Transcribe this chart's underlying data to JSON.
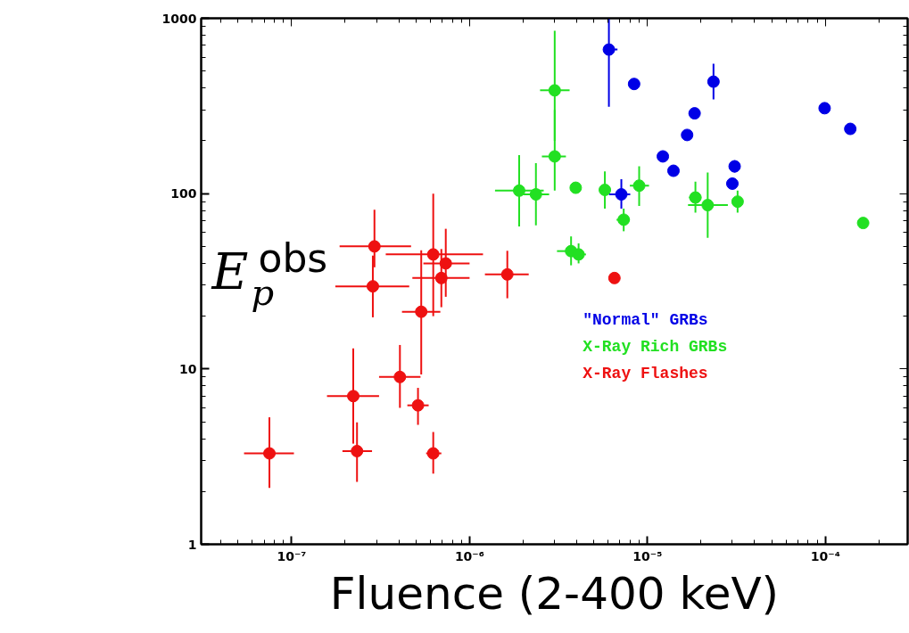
{
  "chart_data": {
    "type": "scatter",
    "xlabel": "Fluence (2-400 keV)",
    "ylabel": "E$_{p}$$^{obs}$",
    "log": "xy",
    "marker": "circle",
    "grid": false,
    "legend": "right",
    "xlim": [
      3.1e-08,
      0.00029
    ],
    "ylim": [
      1,
      1000
    ],
    "xticks": [
      {
        "value": 1e-07,
        "label": "10⁻⁷"
      },
      {
        "value": 1e-06,
        "label": "10⁻⁶"
      },
      {
        "value": 1e-05,
        "label": "10⁻⁵"
      },
      {
        "value": 0.0001,
        "label": "10⁻⁴"
      }
    ],
    "yticks": [
      1,
      10,
      100,
      1000
    ],
    "series": [
      {
        "name": "\"Normal\" GRBs",
        "color": "#0000e6",
        "x": [
          6.07e-06,
          8.41e-06,
          2.35e-05,
          1.84e-05,
          1.67e-05,
          1.22e-05,
          1.4e-05,
          3.09e-05,
          3e-05,
          7.13e-06,
          9.9e-05,
          0.000138
        ],
        "values": [
          663,
          422,
          435,
          287,
          216,
          163,
          135,
          143,
          114,
          99,
          307,
          234
        ],
        "errors": [
          [
            313,
            1000
          ],
          null,
          [
            345,
            550
          ],
          null,
          null,
          null,
          null,
          [
            132,
            155
          ],
          null,
          [
            82,
            121
          ],
          null,
          null
        ],
        "xerrors": [
          [
            5.7e-06,
            6.78e-06
          ],
          null,
          null,
          null,
          null,
          null,
          null,
          null,
          null,
          [
            6.08e-06,
            8e-06
          ],
          null,
          null
        ]
      },
      {
        "name": "X-Ray Rich GRBs",
        "color": "#22e022",
        "x": [
          3.01e-06,
          3.01e-06,
          1.9e-06,
          2.36e-06,
          3.95e-06,
          5.76e-06,
          8.98e-06,
          7.35e-06,
          3.72e-06,
          4.1e-06,
          1.86e-05,
          2.18e-05,
          3.21e-05,
          0.000163
        ],
        "values": [
          388,
          163,
          104,
          99,
          108,
          105,
          111,
          71,
          47,
          45,
          95,
          86,
          90,
          68
        ],
        "errors": [
          [
            200,
            850
          ],
          [
            104,
            300
          ],
          [
            65,
            166
          ],
          [
            66,
            149
          ],
          null,
          [
            82,
            134
          ],
          [
            85,
            143
          ],
          [
            61,
            82
          ],
          [
            39,
            57
          ],
          [
            40,
            52
          ],
          [
            78,
            117
          ],
          [
            56,
            132
          ],
          [
            78,
            104
          ],
          null
        ],
        "xerrors": [
          [
            2.49e-06,
            3.65e-06
          ],
          [
            2.55e-06,
            3.48e-06
          ],
          [
            1.39e-06,
            2.61e-06
          ],
          [
            2e-06,
            2.8e-06
          ],
          null,
          [
            5.37e-06,
            6.2e-06
          ],
          [
            7.96e-06,
            1.02e-05
          ],
          [
            6.7e-06,
            7.96e-06
          ],
          [
            3.1e-06,
            4.3e-06
          ],
          [
            3.77e-06,
            4.51e-06
          ],
          [
            1.71e-05,
            2.01e-05
          ],
          [
            1.69e-05,
            2.83e-05
          ],
          null,
          null
        ]
      },
      {
        "name": "X-Ray Flashes",
        "color": "#ee1111",
        "x": [
          7.5e-08,
          2.33e-07,
          2.22e-07,
          2.92e-07,
          2.86e-07,
          4.06e-07,
          5.13e-07,
          5.35e-07,
          6.25e-07,
          7.35e-07,
          6.94e-07,
          6.25e-07,
          1.63e-06,
          6.52e-06
        ],
        "values": [
          3.3,
          3.4,
          7.0,
          50,
          29.6,
          9.0,
          6.2,
          21.2,
          45,
          40,
          33,
          3.3,
          34.6,
          33
        ],
        "errors": [
          [
            2.1,
            5.3
          ],
          [
            2.27,
            4.96
          ],
          [
            3.75,
            13.1
          ],
          [
            38,
            81
          ],
          [
            19.7,
            44.3
          ],
          [
            6.0,
            13.7
          ],
          [
            4.8,
            7.8
          ],
          [
            9.3,
            47.5
          ],
          [
            20,
            100
          ],
          [
            25.8,
            63
          ],
          [
            22.5,
            48.3
          ],
          [
            2.53,
            4.37
          ],
          [
            25.3,
            47.2
          ],
          null
        ],
        "xerrors": [
          [
            5.4e-08,
            1.03e-07
          ],
          [
            1.93e-07,
            2.83e-07
          ],
          [
            1.58e-07,
            3.1e-07
          ],
          [
            1.86e-07,
            4.69e-07
          ],
          [
            1.76e-07,
            4.58e-07
          ],
          [
            3.1e-07,
            5.3e-07
          ],
          [
            4.47e-07,
            5.89e-07
          ],
          [
            4.17e-07,
            6.85e-07
          ],
          [
            3.38e-07,
            1.19e-06
          ],
          [
            5.5e-07,
            1e-06
          ],
          [
            4.77e-07,
            1e-06
          ],
          [
            5.7e-07,
            6.94e-07
          ],
          [
            1.22e-06,
            2.15e-06
          ],
          null
        ]
      }
    ]
  }
}
